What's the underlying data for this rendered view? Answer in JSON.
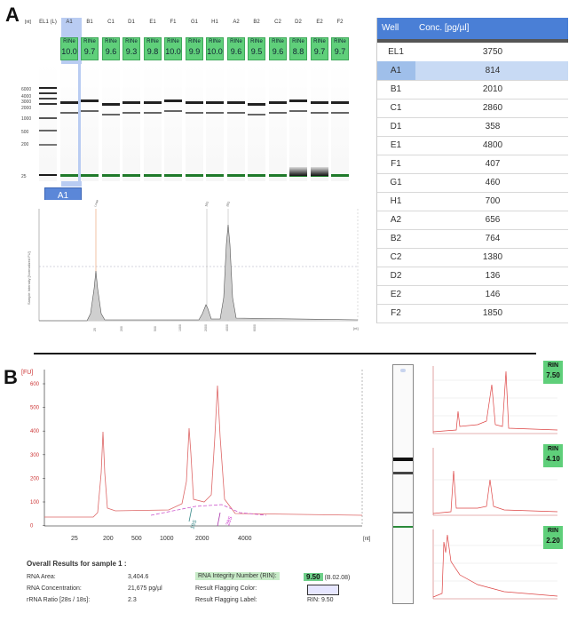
{
  "panels": {
    "a_label": "A",
    "b_label": "B"
  },
  "gel": {
    "columns": [
      "EL1 (L)",
      "A1",
      "B1",
      "C1",
      "D1",
      "E1",
      "F1",
      "G1",
      "H1",
      "A2",
      "B2",
      "C2",
      "D2",
      "E2",
      "F2"
    ],
    "rin_label": "RINe",
    "rin_values": [
      "",
      "10.0",
      "9.7",
      "9.6",
      "9.3",
      "9.8",
      "10.0",
      "9.9",
      "10.0",
      "9.6",
      "9.5",
      "9.6",
      "8.8",
      "9.7",
      "9.7"
    ],
    "ladder_sizes": [
      "6000",
      "4000",
      "3000",
      "2000",
      "1000",
      "500",
      "200",
      "25"
    ],
    "header_small": "[nt]"
  },
  "trace_a": {
    "sample_tab": "A1",
    "y_axis_label": "Sample Intensity [Normalized FU]",
    "peak_labels": [
      "Lower",
      "18S",
      "28S"
    ],
    "x_ticks": [
      "25",
      "200",
      "500",
      "1000",
      "2000",
      "4000",
      "6000"
    ],
    "x_unit": "[nt]"
  },
  "table": {
    "headers": [
      "Well",
      "Conc. [pg/µl]"
    ],
    "rows": [
      {
        "well": "EL1",
        "conc": "3750"
      },
      {
        "well": "A1",
        "conc": "814"
      },
      {
        "well": "B1",
        "conc": "2010"
      },
      {
        "well": "C1",
        "conc": "2860"
      },
      {
        "well": "D1",
        "conc": "358"
      },
      {
        "well": "E1",
        "conc": "4800"
      },
      {
        "well": "F1",
        "conc": "407"
      },
      {
        "well": "G1",
        "conc": "460"
      },
      {
        "well": "H1",
        "conc": "700"
      },
      {
        "well": "A2",
        "conc": "656"
      },
      {
        "well": "B2",
        "conc": "764"
      },
      {
        "well": "C2",
        "conc": "1380"
      },
      {
        "well": "D2",
        "conc": "136"
      },
      {
        "well": "E2",
        "conc": "146"
      },
      {
        "well": "F2",
        "conc": "1850"
      }
    ],
    "selected": "A1"
  },
  "trace_b": {
    "y_unit": "[FU]",
    "y_ticks": [
      "600",
      "500",
      "400",
      "300",
      "200",
      "100",
      "0"
    ],
    "x_ticks": [
      "25",
      "200",
      "500",
      "1000",
      "2000",
      "4000"
    ],
    "x_unit": "[nt]",
    "annotations": [
      "18S",
      "28S"
    ]
  },
  "results": {
    "title": "Overall Results for sample 1 :",
    "area_label": "RNA Area:",
    "area_value": "3,404.6",
    "conc_label": "RNA Concentration:",
    "conc_value": "21,675 pg/µl",
    "ratio_label": "rRNA Ratio [28s / 18s]:",
    "ratio_value": "2.3",
    "rin_label": "RNA Integrity Number (RIN):",
    "rin_value": "9.50",
    "rin_version": "(B.02.08)",
    "flag_color_label": "Result Flagging Color:",
    "flag_label_label": "Result Flagging Label:",
    "flag_label_value": "RIN: 9.50"
  },
  "mini_traces": [
    {
      "rin_label": "RIN",
      "rin_value": "7.50"
    },
    {
      "rin_label": "RIN",
      "rin_value": "4.10"
    },
    {
      "rin_label": "RIN",
      "rin_value": "2.20"
    }
  ]
}
